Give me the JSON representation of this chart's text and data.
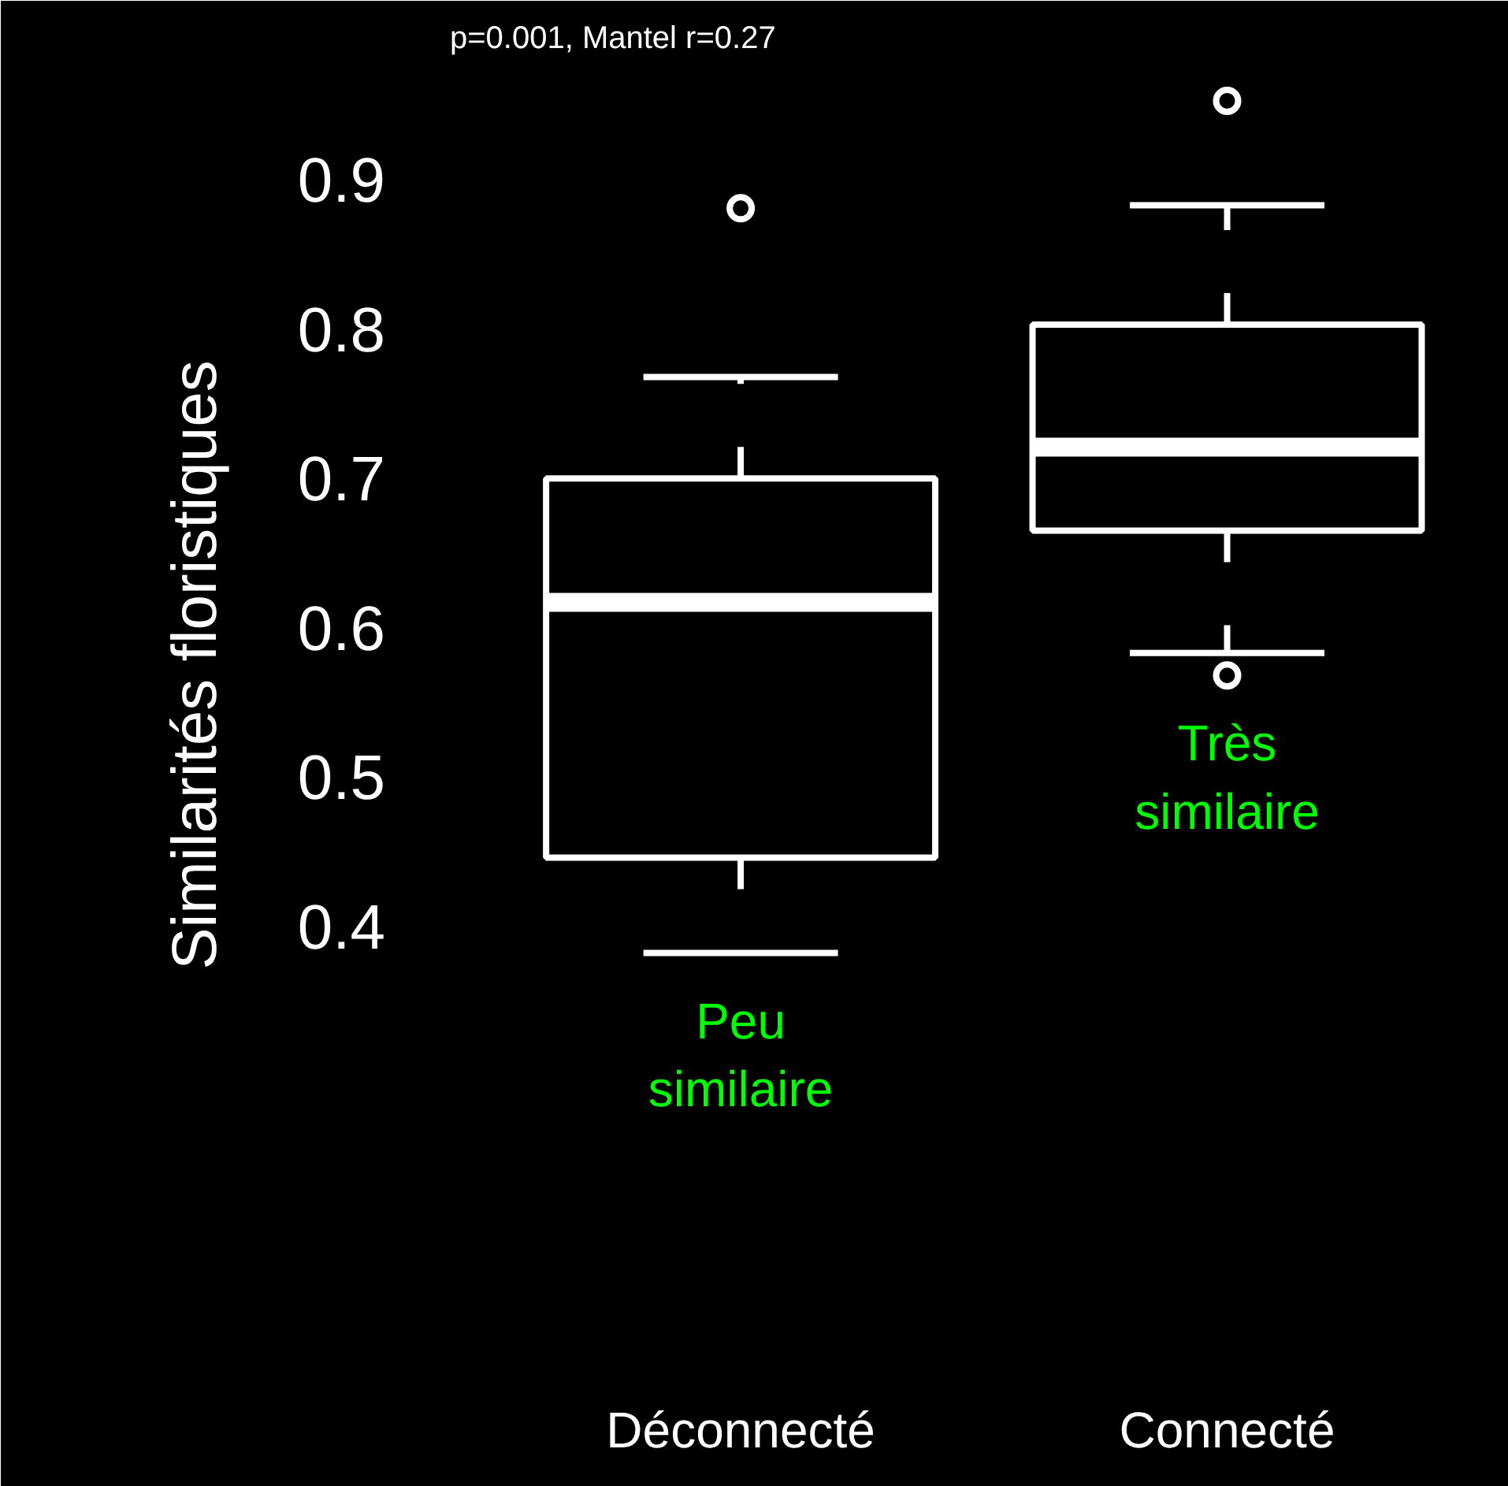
{
  "chart_data": {
    "type": "box",
    "ylabel": "Similarités floristiques",
    "categories": [
      "Déconnecté",
      "Connecté"
    ],
    "boxes": [
      {
        "low": 0.382,
        "q1": 0.446,
        "median": 0.617,
        "q3": 0.7,
        "high": 0.768,
        "outliers": [
          0.881
        ]
      },
      {
        "low": 0.583,
        "q1": 0.665,
        "median": 0.721,
        "q3": 0.803,
        "high": 0.883,
        "outliers": [
          0.953,
          0.568
        ]
      }
    ],
    "ylim": [
      0.13,
      1.02
    ],
    "yticks": [
      0.4,
      0.5,
      0.6,
      0.7,
      0.8,
      0.9
    ],
    "grid": false,
    "annotations": [
      "p=0.001, Mantel r=0.27",
      "Peu\nsimilaire",
      "Très\nsimilaire"
    ]
  }
}
